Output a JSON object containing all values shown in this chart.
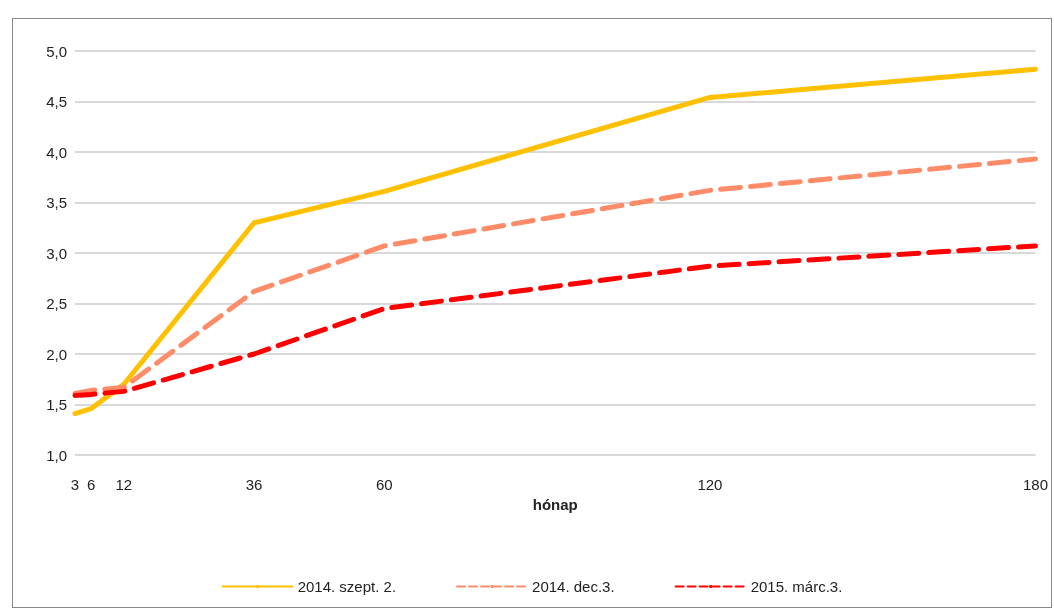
{
  "chart_data": {
    "type": "line",
    "xlabel": "hónap",
    "x": [
      3,
      6,
      12,
      36,
      60,
      120,
      180
    ],
    "series": [
      {
        "name": "2014. szept. 2.",
        "color": "#ffc000",
        "line_style": "solid",
        "values": [
          1.41,
          1.46,
          1.7,
          3.3,
          3.61,
          4.54,
          4.82
        ]
      },
      {
        "name": "2014. dec.3.",
        "color": "#ff8c69",
        "line_style": "dashed",
        "values": [
          1.61,
          1.64,
          1.67,
          2.62,
          3.07,
          3.62,
          3.93
        ]
      },
      {
        "name": "2015. márc.3.",
        "color": "#ff0000",
        "line_style": "dashed",
        "values": [
          1.59,
          1.6,
          1.63,
          2.0,
          2.45,
          2.87,
          3.07
        ]
      }
    ],
    "xlim": [
      3,
      180
    ],
    "xticks": [
      3,
      6,
      12,
      36,
      60,
      120,
      180
    ],
    "ylim": [
      1,
      5
    ],
    "yticks": [
      {
        "value": 1,
        "label": "1,0"
      },
      {
        "value": 1.5,
        "label": "1,5"
      },
      {
        "value": 2,
        "label": "2,0"
      },
      {
        "value": 2.5,
        "label": "2,5"
      },
      {
        "value": 3,
        "label": "3,0"
      },
      {
        "value": 3.5,
        "label": "3,5"
      },
      {
        "value": 4,
        "label": "4,0"
      },
      {
        "value": 4.5,
        "label": "4,5"
      },
      {
        "value": 5,
        "label": "5,0"
      }
    ],
    "grid": "y",
    "legend": "bottom",
    "marker": "none"
  }
}
